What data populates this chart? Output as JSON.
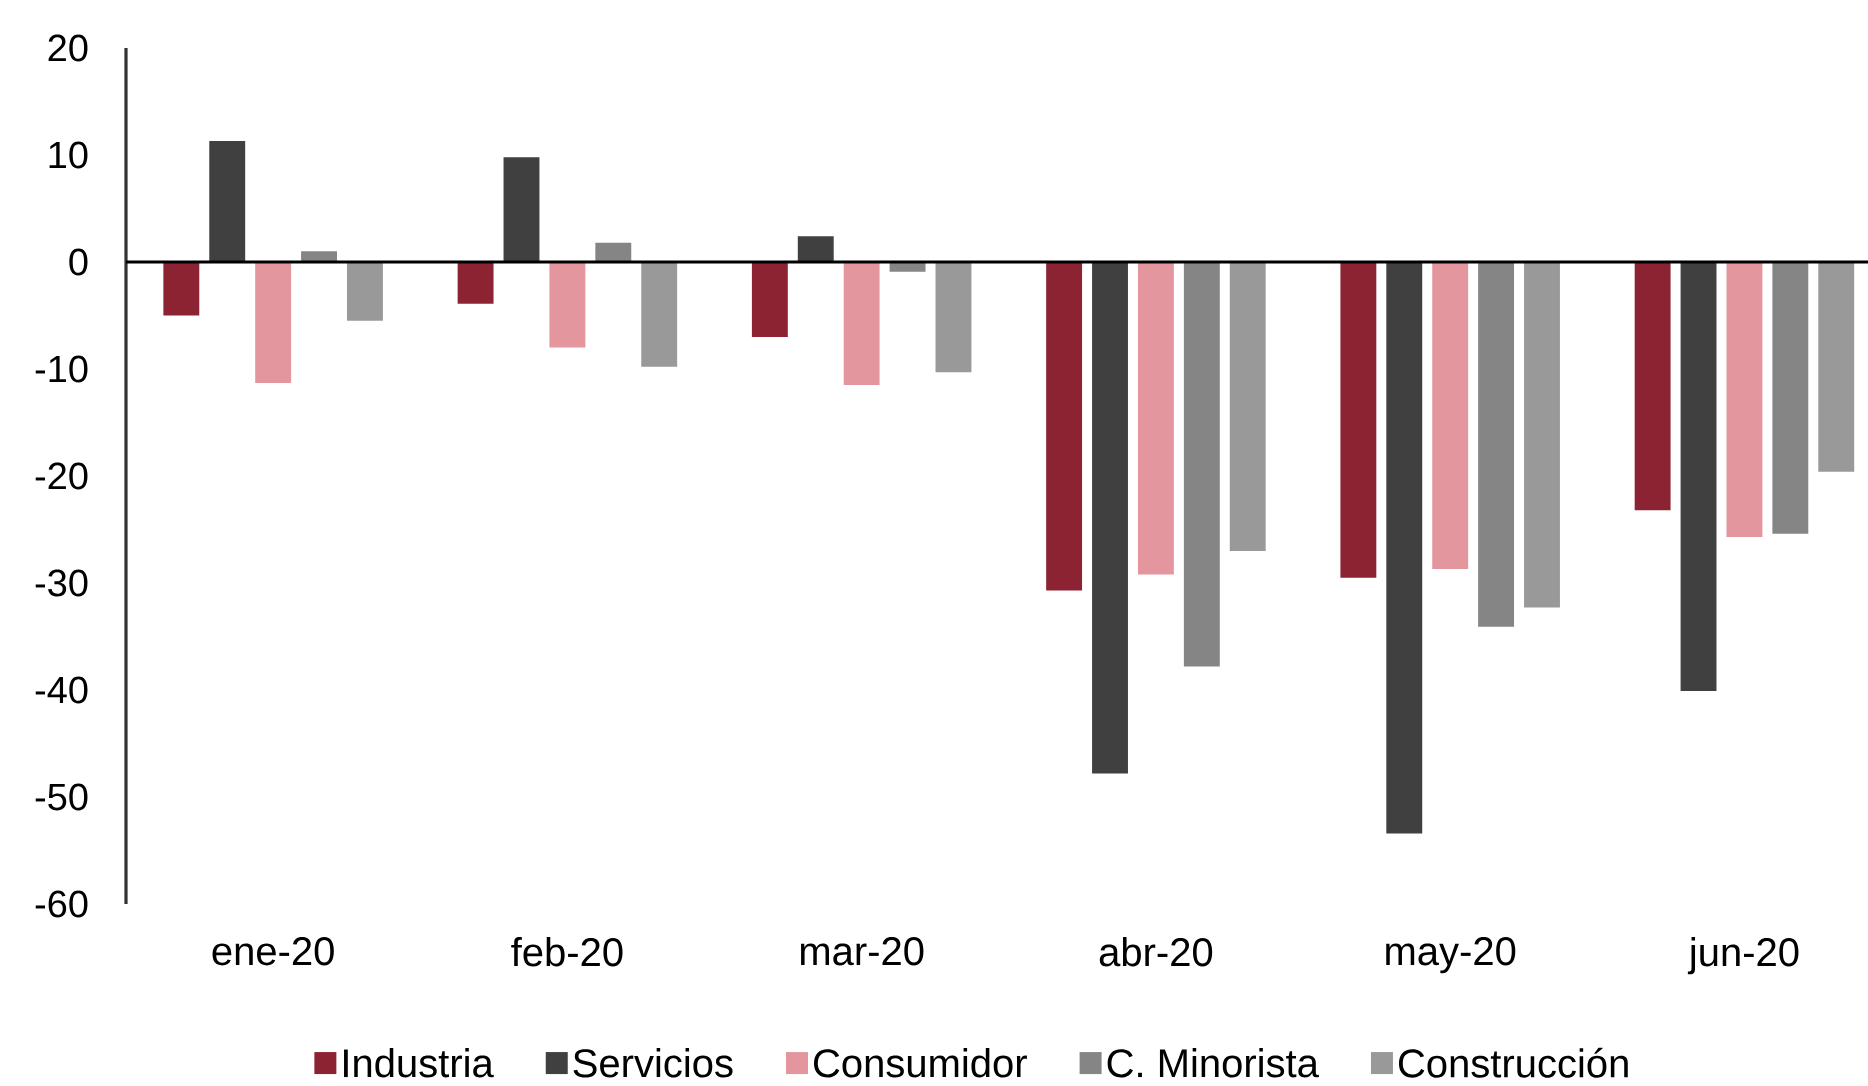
{
  "chart_data": {
    "type": "bar",
    "categories": [
      "ene-20",
      "feb-20",
      "mar-20",
      "abr-20",
      "may-20",
      "jun-20"
    ],
    "series": [
      {
        "name": "Industria",
        "color": "#8b2332",
        "values": [
          -5.0,
          -3.9,
          -7.0,
          -30.7,
          -29.5,
          -23.2
        ]
      },
      {
        "name": "Servicios",
        "color": "#404040",
        "values": [
          11.3,
          9.8,
          2.4,
          -47.8,
          -53.4,
          -40.1
        ]
      },
      {
        "name": "Consumidor",
        "color": "#e4969f",
        "values": [
          -11.3,
          -8.0,
          -11.5,
          -29.2,
          -28.7,
          -25.7
        ]
      },
      {
        "name": "C. Minorista",
        "color": "#858585",
        "values": [
          1.0,
          1.8,
          -0.9,
          -37.8,
          -34.1,
          -25.4
        ]
      },
      {
        "name": "Construcción",
        "color": "#999999",
        "values": [
          -5.5,
          -9.8,
          -10.3,
          -27.0,
          -32.3,
          -19.6
        ]
      }
    ],
    "ylim": [
      -60,
      20
    ],
    "yticks": [
      -60,
      -50,
      -40,
      -30,
      -20,
      -10,
      0,
      10,
      20
    ],
    "legend": "bottom"
  }
}
